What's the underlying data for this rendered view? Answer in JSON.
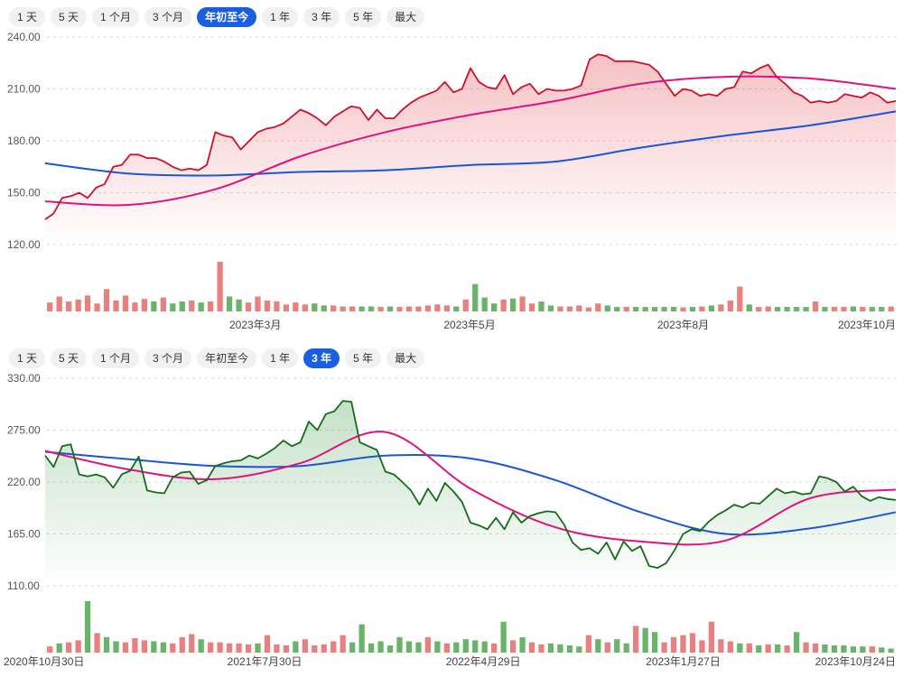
{
  "charts": [
    {
      "tabs": [
        "1 天",
        "5 天",
        "1 个月",
        "3 个月",
        "年初至今",
        "1 年",
        "3 年",
        "5 年",
        "最大"
      ],
      "active_tab": 4,
      "chart_data": {
        "type": "line",
        "title": "",
        "ylim": [
          120,
          240
        ],
        "yticks": [
          "240.00",
          "210.00",
          "180.00",
          "150.00",
          "120.00"
        ],
        "ytick_values": [
          240,
          210,
          180,
          150,
          120
        ],
        "xticks": [
          {
            "label": "2023年3月",
            "at": 24.7
          },
          {
            "label": "2023年5月",
            "at": 49.9
          },
          {
            "label": "2023年8月",
            "at": 75
          },
          {
            "label": "2023年10月",
            "at": 100
          }
        ],
        "line_color": "#d0102a",
        "fill_color": "#e0303a",
        "price": [
          134.6,
          138,
          147,
          148,
          150,
          147,
          153,
          155,
          165,
          166,
          172,
          172,
          170,
          170,
          168,
          165,
          163,
          164,
          163,
          166,
          185,
          183,
          182,
          175,
          180,
          185,
          187,
          188,
          190,
          194,
          198,
          196,
          193,
          189,
          194,
          197,
          200,
          199,
          192,
          198,
          193,
          193,
          198,
          202,
          205,
          207,
          209,
          214,
          208,
          210,
          222,
          214,
          211,
          210,
          218,
          207,
          211,
          213,
          207,
          210,
          209,
          209,
          210,
          212,
          227,
          230,
          229,
          226,
          226,
          226,
          225,
          224,
          220,
          213,
          206,
          210,
          209,
          206,
          207,
          206,
          210,
          211,
          220,
          219,
          222,
          224,
          217,
          213,
          208,
          206,
          202,
          203,
          202,
          203,
          207,
          206,
          205,
          208,
          206,
          202,
          203
        ],
        "ma_short": {
          "color": "#e0137e",
          "values": [
            145,
            143,
            152,
            171,
            185,
            195,
            203,
            213,
            217,
            216,
            210
          ]
        },
        "ma_long": {
          "color": "#1a56d6",
          "values": [
            167,
            161,
            160,
            162,
            163,
            166,
            168,
            176,
            183,
            189,
            197
          ]
        },
        "volume": [
          18,
          30,
          20,
          24,
          32,
          16,
          45,
          22,
          32,
          18,
          25,
          20,
          28,
          16,
          20,
          22,
          18,
          20,
          100,
          30,
          24,
          18,
          30,
          22,
          20,
          14,
          18,
          14,
          16,
          12,
          12,
          10,
          10,
          10,
          10,
          9,
          10,
          9,
          10,
          10,
          12,
          14,
          12,
          10,
          24,
          55,
          28,
          16,
          24,
          26,
          30,
          16,
          20,
          12,
          10,
          10,
          12,
          8,
          16,
          12,
          9,
          9,
          9,
          9,
          9,
          9,
          9,
          8,
          9,
          10,
          12,
          14,
          22,
          50,
          14,
          9,
          10,
          9,
          9,
          9,
          9,
          20,
          9,
          9,
          9,
          10,
          9,
          9,
          9,
          10
        ],
        "volume_up_color": "#e8807f",
        "volume_down_color": "#6ab46a"
      }
    },
    {
      "tabs": [
        "1 天",
        "5 天",
        "1 个月",
        "3 个月",
        "年初至今",
        "1 年",
        "3 年",
        "5 年",
        "最大"
      ],
      "active_tab": 6,
      "chart_data": {
        "type": "line",
        "title": "",
        "ylim": [
          110,
          330
        ],
        "yticks": [
          "330.00",
          "275.00",
          "220.00",
          "165.00",
          "110.00"
        ],
        "ytick_values": [
          330,
          275,
          220,
          165,
          110
        ],
        "xticks": [
          {
            "label": "2020年10月30日",
            "at": 0
          },
          {
            "label": "2021年7月30日",
            "at": 25.8
          },
          {
            "label": "2022年4月29日",
            "at": 51.5
          },
          {
            "label": "2023年1月27日",
            "at": 75
          },
          {
            "label": "2023年10月24日",
            "at": 100
          }
        ],
        "line_color": "#156b1a",
        "fill_color": "#3a9a45",
        "price": [
          248,
          236,
          258,
          260,
          228,
          226,
          228,
          225,
          214,
          228,
          232,
          247,
          211,
          209,
          208,
          225,
          230,
          231,
          218,
          222,
          237,
          240,
          242,
          243,
          248,
          245,
          250,
          256,
          264,
          258,
          262,
          284,
          275,
          292,
          295,
          306,
          305,
          262,
          258,
          254,
          231,
          228,
          220,
          211,
          196,
          213,
          200,
          219,
          210,
          199,
          177,
          174,
          170,
          182,
          170,
          188,
          177,
          184,
          187,
          189,
          188,
          175,
          156,
          148,
          150,
          144,
          156,
          138,
          157,
          147,
          152,
          131,
          129,
          134,
          148,
          165,
          170,
          168,
          178,
          185,
          190,
          196,
          193,
          198,
          197,
          205,
          213,
          208,
          210,
          207,
          208,
          226,
          224,
          220,
          210,
          215,
          205,
          200,
          204,
          202,
          201
        ],
        "ma_short": {
          "color": "#e0137e",
          "values": [
            253,
            233,
            223,
            240,
            273,
            213,
            172,
            157,
            158,
            203,
            212
          ]
        },
        "ma_long": {
          "color": "#1a56d6",
          "values": [
            252,
            244,
            237,
            237,
            248,
            245,
            222,
            188,
            165,
            171,
            188
          ]
        },
        "volume": [
          12,
          18,
          20,
          24,
          100,
          38,
          30,
          22,
          20,
          28,
          24,
          22,
          20,
          18,
          30,
          36,
          26,
          20,
          20,
          18,
          18,
          16,
          18,
          34,
          16,
          14,
          22,
          26,
          14,
          16,
          22,
          34,
          20,
          55,
          18,
          22,
          14,
          30,
          22,
          20,
          30,
          22,
          18,
          20,
          26,
          24,
          22,
          18,
          60,
          24,
          30,
          20,
          16,
          18,
          16,
          14,
          12,
          34,
          26,
          20,
          26,
          18,
          52,
          48,
          40,
          20,
          30,
          34,
          38,
          24,
          60,
          26,
          22,
          18,
          18,
          14,
          16,
          16,
          14,
          40,
          20,
          18,
          16,
          14,
          14,
          12,
          12,
          12,
          10,
          8
        ],
        "volume_up_color": "#e8807f",
        "volume_down_color": "#6ab46a"
      }
    }
  ]
}
